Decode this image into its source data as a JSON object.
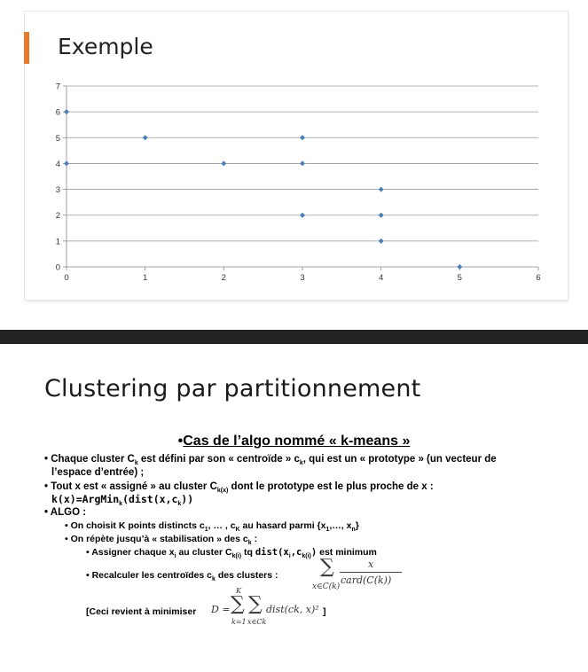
{
  "slide1": {
    "title": "Exemple",
    "accent_color": "#e8792a"
  },
  "chart_data": {
    "type": "scatter",
    "x": [
      0,
      0,
      1,
      2,
      3,
      3,
      3,
      4,
      4,
      4,
      5
    ],
    "y": [
      6,
      4,
      5,
      4,
      5,
      4,
      2,
      3,
      2,
      1,
      0
    ],
    "xlim": [
      0,
      6
    ],
    "ylim": [
      0,
      7
    ],
    "x_ticks": [
      "0",
      "1",
      "2",
      "3",
      "4",
      "5",
      "6"
    ],
    "y_ticks": [
      "0",
      "1",
      "2",
      "3",
      "4",
      "5",
      "6",
      "7"
    ],
    "grid": "horizontal",
    "marker": "diamond",
    "marker_color": "#4a7ebb"
  },
  "slide2": {
    "title": "Clustering par partitionnement",
    "subhead_bullet": "•",
    "subhead": "Cas de l’algo nommé « k-means »",
    "bullets": {
      "b1_a": "• Chaque cluster C",
      "b1_sub": "k",
      "b1_b": " est défini par son « centroïde » c",
      "b1_sub2": "k",
      "b1_c": ", qui est un « prototype » (un vecteur de",
      "b1_line2": "l’espace d’entrée) ;",
      "b2_a": "• Tout x est « assigné » au cluster C",
      "b2_sub": "k(x)",
      "b2_b": " dont le prototype est le plus proche de x :",
      "b3_a": "k(x)=ArgMin",
      "b3_sub": "k",
      "b3_b": "(dist(x,c",
      "b3_sub2": "k",
      "b3_c": "))",
      "b4": "• ALGO :",
      "b5_a": "•   On choisit K points distincts c",
      "b5_sub": "1",
      "b5_b": ", … , c",
      "b5_sub2": "K",
      "b5_c": " au hasard parmi {x",
      "b5_sub3": "1",
      "b5_d": ",…, x",
      "b5_sub4": "n",
      "b5_e": "}",
      "b6_a": "•   On répète jusqu’à « stabilisation » des c",
      "b6_sub": "k",
      "b6_b": " :",
      "b7_a": "• Assigner chaque x",
      "b7_sub": "i",
      "b7_b": " au cluster C",
      "b7_sub2": "k(i)",
      "b7_c": " tq ",
      "b7_d": "dist(x",
      "b7_sub3": "i",
      "b7_e": ",c",
      "b7_sub4": "k(i)",
      "b7_f": ")",
      "b7_g": " est minimum",
      "b8_a": "• Recalculer les centroïdes c",
      "b8_sub": "k",
      "b8_b": " des clusters :",
      "b9_open": "[Ceci revient à minimiser",
      "b9_close": "]"
    },
    "formula_centroid": {
      "sum_sign": "∑",
      "sum_under": "x∈C(k)",
      "numerator": "x",
      "denominator": "card(C(k))"
    },
    "formula_D": {
      "lhs": "D =",
      "outer_sum_top": "K",
      "outer_sum_bottom": "k=1",
      "inner_sum_bottom": "x∈Ck",
      "sum_sign": "∑",
      "term": "dist(ck, x)²"
    }
  }
}
